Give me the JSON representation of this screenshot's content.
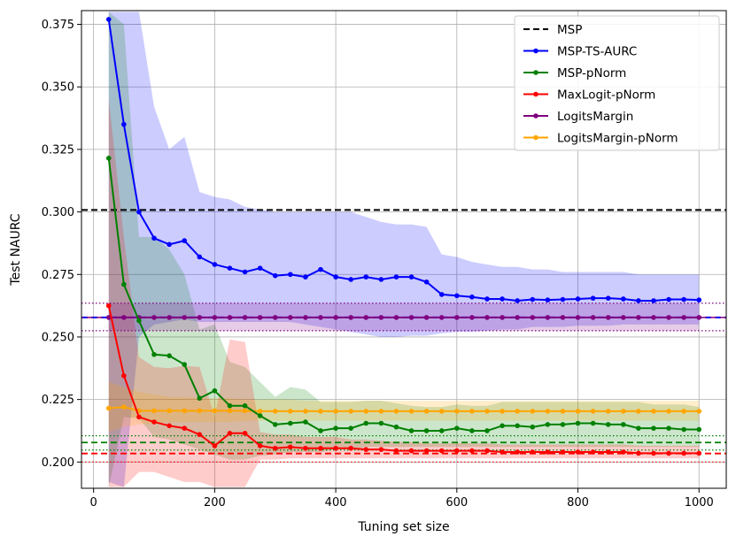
{
  "chart_data": {
    "type": "line",
    "xlabel": "Tuning set size",
    "ylabel": "Test NAURC",
    "xlim": [
      -20,
      1045
    ],
    "ylim": [
      0.1895,
      0.3805
    ],
    "xticks": [
      0,
      200,
      400,
      600,
      800,
      1000
    ],
    "yticks": [
      0.2,
      0.225,
      0.25,
      0.275,
      0.3,
      0.325,
      0.35,
      0.375
    ],
    "grid": true,
    "legend_position": "top-right",
    "x": [
      25,
      50,
      75,
      100,
      125,
      150,
      175,
      200,
      225,
      250,
      275,
      300,
      325,
      350,
      375,
      400,
      425,
      450,
      475,
      500,
      525,
      550,
      575,
      600,
      625,
      650,
      675,
      700,
      725,
      750,
      775,
      800,
      825,
      850,
      875,
      900,
      925,
      950,
      975,
      1000
    ],
    "series": [
      {
        "name": "MSP",
        "color": "#000000",
        "style": "dashed",
        "constant": 0.3008
      },
      {
        "name": "MSP-TS-AURC",
        "color": "#0000ff",
        "style": "solid-markers",
        "values": [
          0.377,
          0.335,
          0.3,
          0.2895,
          0.287,
          0.2885,
          0.282,
          0.279,
          0.2775,
          0.276,
          0.2775,
          0.2745,
          0.275,
          0.274,
          0.277,
          0.274,
          0.273,
          0.274,
          0.273,
          0.274,
          0.274,
          0.272,
          0.267,
          0.2665,
          0.266,
          0.2652,
          0.2652,
          0.2645,
          0.265,
          0.2648,
          0.265,
          0.2652,
          0.2655,
          0.2655,
          0.2652,
          0.2645,
          0.2645,
          0.265,
          0.265,
          0.2648
        ],
        "band_upper": [
          0.38,
          0.38,
          0.38,
          0.342,
          0.325,
          0.33,
          0.308,
          0.306,
          0.305,
          0.302,
          0.301,
          0.3,
          0.3,
          0.3,
          0.3,
          0.3,
          0.3,
          0.298,
          0.296,
          0.295,
          0.295,
          0.294,
          0.283,
          0.282,
          0.28,
          0.279,
          0.278,
          0.278,
          0.277,
          0.277,
          0.276,
          0.276,
          0.276,
          0.276,
          0.276,
          0.275,
          0.275,
          0.275,
          0.275,
          0.275
        ],
        "band_lower": [
          0.192,
          0.19,
          0.25,
          0.255,
          0.256,
          0.257,
          0.256,
          0.256,
          0.256,
          0.256,
          0.256,
          0.256,
          0.256,
          0.255,
          0.254,
          0.253,
          0.252,
          0.251,
          0.25,
          0.25,
          0.2505,
          0.2505,
          0.2515,
          0.252,
          0.252,
          0.2525,
          0.253,
          0.253,
          0.254,
          0.254,
          0.254,
          0.2545,
          0.2545,
          0.2545,
          0.255,
          0.255,
          0.255,
          0.255,
          0.255,
          0.255
        ]
      },
      {
        "name": "MSP-pNorm",
        "color": "#008000",
        "style": "solid-markers",
        "values": [
          0.3215,
          0.271,
          0.2565,
          0.243,
          0.2425,
          0.239,
          0.2255,
          0.2285,
          0.2225,
          0.2225,
          0.2185,
          0.215,
          0.2155,
          0.216,
          0.2125,
          0.2135,
          0.2135,
          0.2155,
          0.2155,
          0.214,
          0.2125,
          0.2125,
          0.2125,
          0.2135,
          0.2125,
          0.2125,
          0.2145,
          0.2145,
          0.214,
          0.215,
          0.215,
          0.2155,
          0.2155,
          0.215,
          0.215,
          0.2135,
          0.2135,
          0.2135,
          0.213,
          0.213
        ],
        "band_upper": [
          0.38,
          0.375,
          0.29,
          0.29,
          0.285,
          0.275,
          0.253,
          0.255,
          0.24,
          0.238,
          0.232,
          0.226,
          0.23,
          0.229,
          0.224,
          0.224,
          0.224,
          0.2245,
          0.2245,
          0.2235,
          0.2225,
          0.222,
          0.222,
          0.223,
          0.2225,
          0.2225,
          0.224,
          0.224,
          0.224,
          0.224,
          0.224,
          0.224,
          0.224,
          0.224,
          0.224,
          0.224,
          0.223,
          0.223,
          0.223,
          0.222
        ],
        "band_lower": [
          0.19,
          0.218,
          0.2175,
          0.21,
          0.209,
          0.207,
          0.205,
          0.203,
          0.201,
          0.201,
          0.2025,
          0.203,
          0.204,
          0.204,
          0.204,
          0.205,
          0.205,
          0.206,
          0.206,
          0.206,
          0.206,
          0.206,
          0.206,
          0.206,
          0.206,
          0.206,
          0.206,
          0.206,
          0.206,
          0.206,
          0.206,
          0.206,
          0.206,
          0.206,
          0.206,
          0.206,
          0.206,
          0.206,
          0.206,
          0.206
        ]
      },
      {
        "name": "MaxLogit-pNorm",
        "color": "#ff0000",
        "style": "solid-markers",
        "values": [
          0.2625,
          0.2345,
          0.218,
          0.216,
          0.2145,
          0.2135,
          0.211,
          0.2065,
          0.2115,
          0.2115,
          0.2065,
          0.2055,
          0.206,
          0.2055,
          0.2055,
          0.2055,
          0.2055,
          0.205,
          0.205,
          0.2045,
          0.2045,
          0.2045,
          0.2045,
          0.2045,
          0.2045,
          0.2045,
          0.204,
          0.204,
          0.204,
          0.204,
          0.204,
          0.204,
          0.204,
          0.204,
          0.204,
          0.2035,
          0.2035,
          0.2035,
          0.2035,
          0.2035
        ],
        "band_upper": [
          0.345,
          0.29,
          0.242,
          0.238,
          0.2375,
          0.2385,
          0.238,
          0.218,
          0.249,
          0.248,
          0.212,
          0.211,
          0.211,
          0.21,
          0.21,
          0.21,
          0.209,
          0.209,
          0.2085,
          0.208,
          0.208,
          0.2075,
          0.2075,
          0.2075,
          0.2075,
          0.2075,
          0.207,
          0.207,
          0.207,
          0.207,
          0.207,
          0.207,
          0.207,
          0.207,
          0.207,
          0.2065,
          0.2065,
          0.2065,
          0.2065,
          0.2065
        ],
        "band_lower": [
          0.19,
          0.19,
          0.196,
          0.196,
          0.194,
          0.192,
          0.192,
          0.19,
          0.19,
          0.19,
          0.201,
          0.201,
          0.2015,
          0.2015,
          0.2015,
          0.2015,
          0.2015,
          0.2015,
          0.2015,
          0.2015,
          0.2015,
          0.2015,
          0.2015,
          0.2015,
          0.2015,
          0.2015,
          0.2015,
          0.2015,
          0.2015,
          0.2015,
          0.2015,
          0.2015,
          0.2015,
          0.2015,
          0.2015,
          0.2015,
          0.2015,
          0.2015,
          0.2015,
          0.2015
        ]
      },
      {
        "name": "LogitsMargin",
        "color": "#800080",
        "style": "solid-markers",
        "constant": 0.2578,
        "band_upper": 0.2635,
        "band_lower": 0.2525
      },
      {
        "name": "LogitsMargin-pNorm",
        "color": "#ffa500",
        "style": "solid-markers",
        "values": [
          0.2215,
          0.222,
          0.2205,
          0.2205,
          0.2205,
          0.2205,
          0.2205,
          0.2205,
          0.2205,
          0.2205,
          0.2203,
          0.2203,
          0.2203,
          0.2203,
          0.2203,
          0.2203,
          0.2203,
          0.2203,
          0.2203,
          0.2203,
          0.2203,
          0.2203,
          0.2203,
          0.2203,
          0.2203,
          0.2203,
          0.2203,
          0.2203,
          0.2203,
          0.2203,
          0.2203,
          0.2203,
          0.2203,
          0.2203,
          0.2203,
          0.2203,
          0.2203,
          0.2203,
          0.2203,
          0.2203
        ],
        "band_upper": [
          0.232,
          0.23,
          0.228,
          0.227,
          0.226,
          0.226,
          0.2255,
          0.2255,
          0.2255,
          0.225,
          0.225,
          0.225,
          0.225,
          0.2245,
          0.2245,
          0.2245,
          0.2245,
          0.2245,
          0.2245,
          0.2245,
          0.2245,
          0.2245,
          0.2245,
          0.2245,
          0.2245,
          0.2245,
          0.2245,
          0.2245,
          0.2245,
          0.2245,
          0.2245,
          0.2245,
          0.2245,
          0.2245,
          0.2245,
          0.2245,
          0.2245,
          0.2245,
          0.2245,
          0.2245
        ],
        "band_lower": [
          0.212,
          0.214,
          0.215,
          0.2155,
          0.216,
          0.216,
          0.216,
          0.216,
          0.216,
          0.2165,
          0.2165,
          0.2165,
          0.2165,
          0.2165,
          0.2165,
          0.2165,
          0.2165,
          0.2165,
          0.2165,
          0.2165,
          0.2165,
          0.2165,
          0.2165,
          0.2165,
          0.2165,
          0.2165,
          0.2165,
          0.2165,
          0.2165,
          0.2165,
          0.2165,
          0.2165,
          0.2165,
          0.2165,
          0.2165,
          0.2165,
          0.2165,
          0.2165,
          0.2165,
          0.2165
        ]
      }
    ],
    "reference_lines": [
      {
        "color": "#008000",
        "style": "dashed",
        "value": 0.2078
      },
      {
        "color": "#008000",
        "style": "dotted",
        "value": 0.2105
      },
      {
        "color": "#008000",
        "style": "dotted",
        "value": 0.2048
      },
      {
        "color": "#ff0000",
        "style": "dashed",
        "value": 0.2034
      },
      {
        "color": "#ff0000",
        "style": "dotted",
        "value": 0.2
      }
    ]
  }
}
